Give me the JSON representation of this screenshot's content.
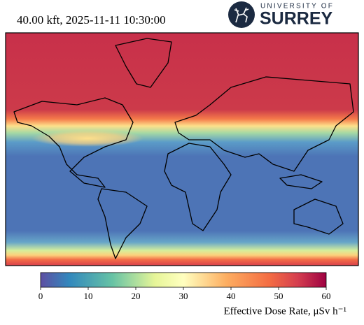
{
  "header": {
    "title": "40.00 kft, 2025-11-11 10:30:00",
    "logo_top": "UNIVERSITY OF",
    "logo_main": "SURREY"
  },
  "colorbar": {
    "lim": [
      0,
      60
    ],
    "ticks": [
      0,
      10,
      20,
      30,
      40,
      50,
      60
    ],
    "label": "Effective Dose Rate, μSv h⁻¹"
  }
}
